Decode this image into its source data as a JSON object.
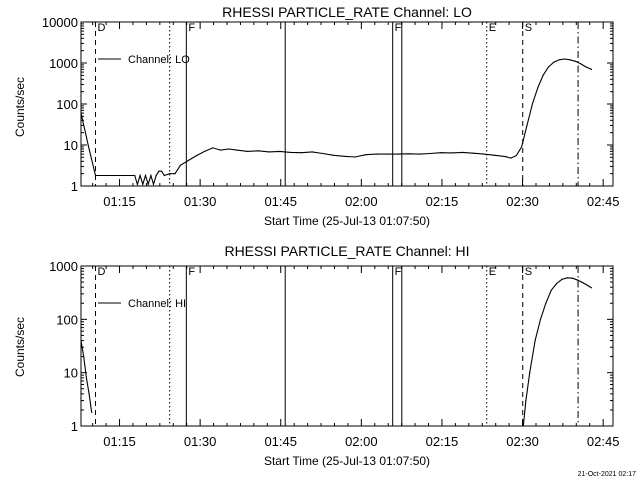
{
  "footer_timestamp": "21-Oct-2021 02:17",
  "chart_data": [
    {
      "type": "line",
      "title": "RHESSI PARTICLE_RATE Channel: LO",
      "xlabel": "Start Time (25-Jul-13 01:07:50)",
      "ylabel": "Counts/sec",
      "yscale": "log",
      "ylim": [
        1,
        10000
      ],
      "xlim_minutes": [
        0,
        99
      ],
      "xticks": [
        "01:15",
        "01:30",
        "01:45",
        "02:00",
        "02:15",
        "02:30",
        "02:45"
      ],
      "yticks": [
        "1",
        "10",
        "100",
        "1000",
        "10000"
      ],
      "legend": "top-left",
      "series": [
        {
          "name": "Channel: LO",
          "points": [
            [
              0.0,
              60
            ],
            [
              1.5,
              8
            ],
            [
              2.7,
              1.8
            ],
            [
              4,
              1.8
            ],
            [
              6,
              1.8
            ],
            [
              8,
              1.8
            ],
            [
              10,
              1.8
            ],
            [
              10.5,
              1.1
            ],
            [
              11,
              1.8
            ],
            [
              11.5,
              1.1
            ],
            [
              12,
              1.8
            ],
            [
              12.5,
              1.1
            ],
            [
              13,
              1.8
            ],
            [
              13.5,
              1.1
            ],
            [
              14,
              1.8
            ],
            [
              14.5,
              2.3
            ],
            [
              15,
              2.3
            ],
            [
              15.5,
              1.8
            ],
            [
              16.5,
              2.0
            ],
            [
              17.5,
              2.0
            ],
            [
              18.5,
              3.2
            ],
            [
              20,
              4.2
            ],
            [
              21.5,
              5.5
            ],
            [
              23,
              7.0
            ],
            [
              24.5,
              8.5
            ],
            [
              26,
              7.5
            ],
            [
              27.5,
              8.0
            ],
            [
              29,
              7.5
            ],
            [
              31,
              7.0
            ],
            [
              33,
              7.2
            ],
            [
              35,
              6.8
            ],
            [
              37,
              7.0
            ],
            [
              39,
              6.6
            ],
            [
              41,
              6.5
            ],
            [
              43,
              6.8
            ],
            [
              45,
              6.2
            ],
            [
              47,
              5.6
            ],
            [
              49,
              5.3
            ],
            [
              51,
              5.1
            ],
            [
              53,
              5.8
            ],
            [
              55,
              6.0
            ],
            [
              57,
              6.0
            ],
            [
              59,
              6.0
            ],
            [
              61,
              6.1
            ],
            [
              63,
              6.0
            ],
            [
              65,
              6.2
            ],
            [
              67,
              6.5
            ],
            [
              69,
              6.4
            ],
            [
              71,
              6.6
            ],
            [
              73,
              6.3
            ],
            [
              75,
              6.0
            ],
            [
              77,
              5.6
            ],
            [
              79,
              5.2
            ],
            [
              80,
              4.8
            ],
            [
              81,
              5.5
            ],
            [
              82,
              9
            ],
            [
              83,
              30
            ],
            [
              84,
              100
            ],
            [
              85,
              250
            ],
            [
              86,
              500
            ],
            [
              87,
              800
            ],
            [
              88,
              1050
            ],
            [
              89,
              1200
            ],
            [
              90,
              1250
            ],
            [
              91,
              1200
            ],
            [
              92,
              1100
            ],
            [
              93,
              950
            ],
            [
              94,
              800
            ],
            [
              95,
              700
            ]
          ]
        }
      ],
      "vlines": [
        {
          "t": 2.7,
          "style": "dashed",
          "label": "D"
        },
        {
          "t": 16.5,
          "style": "dotted",
          "label": ""
        },
        {
          "t": 19.6,
          "style": "solid",
          "label": "F"
        },
        {
          "t": 38.0,
          "style": "solid",
          "label": ""
        },
        {
          "t": 58.0,
          "style": "solid",
          "label": "F"
        },
        {
          "t": 59.7,
          "style": "solid",
          "label": ""
        },
        {
          "t": 75.5,
          "style": "dotted",
          "label": "E"
        },
        {
          "t": 82.2,
          "style": "dashed",
          "label": "S"
        },
        {
          "t": 92.5,
          "style": "dashdot",
          "label": ""
        }
      ]
    },
    {
      "type": "line",
      "title": "RHESSI PARTICLE_RATE Channel: HI",
      "xlabel": "Start Time (25-Jul-13 01:07:50)",
      "ylabel": "Counts/sec",
      "yscale": "log",
      "ylim": [
        1,
        1000
      ],
      "xlim_minutes": [
        0,
        99
      ],
      "xticks": [
        "01:15",
        "01:30",
        "01:45",
        "02:00",
        "02:15",
        "02:30",
        "02:45"
      ],
      "yticks": [
        "1",
        "10",
        "100",
        "1000"
      ],
      "legend": "top-left",
      "series": [
        {
          "name": "Channel: HI",
          "points": [
            [
              0.0,
              40
            ],
            [
              0.5,
              20
            ],
            [
              1.0,
              8
            ],
            [
              1.5,
              4
            ],
            [
              2.0,
              1.8
            ]
          ]
        },
        {
          "name": "",
          "points": [
            [
              82.3,
              1.0
            ],
            [
              82.8,
              3
            ],
            [
              83.5,
              10
            ],
            [
              84.5,
              40
            ],
            [
              85.5,
              100
            ],
            [
              86.5,
              200
            ],
            [
              87.5,
              350
            ],
            [
              88.5,
              470
            ],
            [
              89.5,
              560
            ],
            [
              90.5,
              600
            ],
            [
              91.5,
              590
            ],
            [
              92.5,
              540
            ],
            [
              93.5,
              480
            ],
            [
              94.5,
              420
            ],
            [
              95,
              390
            ]
          ]
        }
      ],
      "vlines": [
        {
          "t": 2.7,
          "style": "dashed",
          "label": "D"
        },
        {
          "t": 16.5,
          "style": "dotted",
          "label": ""
        },
        {
          "t": 19.6,
          "style": "solid",
          "label": "F"
        },
        {
          "t": 38.0,
          "style": "solid",
          "label": ""
        },
        {
          "t": 58.0,
          "style": "solid",
          "label": "F"
        },
        {
          "t": 59.7,
          "style": "solid",
          "label": ""
        },
        {
          "t": 75.5,
          "style": "dotted",
          "label": "E"
        },
        {
          "t": 82.2,
          "style": "dashed",
          "label": "S"
        },
        {
          "t": 92.5,
          "style": "dashdot",
          "label": ""
        }
      ]
    }
  ]
}
